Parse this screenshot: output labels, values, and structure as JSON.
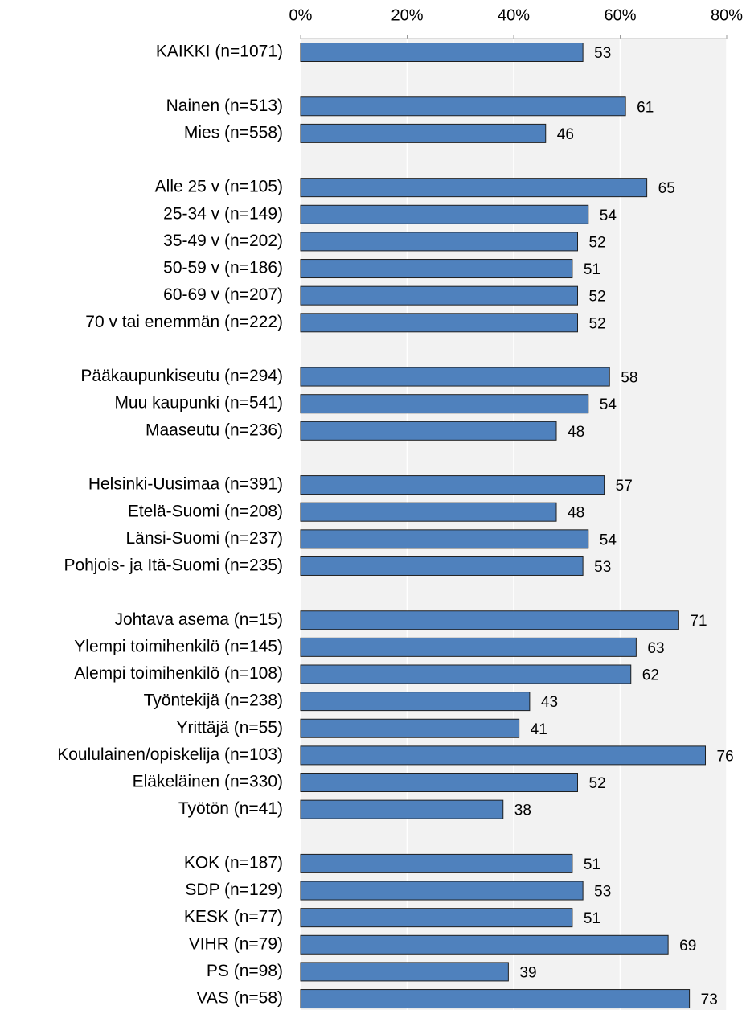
{
  "chart_data": {
    "type": "bar",
    "orientation": "horizontal",
    "color": "#4f81bd",
    "grid": true,
    "categories": [
      "KAIKKI (n=1071)",
      null,
      "Nainen (n=513)",
      "Mies (n=558)",
      null,
      "Alle 25 v (n=105)",
      "25-34 v (n=149)",
      "35-49 v (n=202)",
      "50-59 v (n=186)",
      "60-69 v (n=207)",
      "70 v tai enemmän (n=222)",
      null,
      "Pääkaupunkiseutu (n=294)",
      "Muu kaupunki (n=541)",
      "Maaseutu (n=236)",
      null,
      "Helsinki-Uusimaa (n=391)",
      "Etelä-Suomi (n=208)",
      "Länsi-Suomi (n=237)",
      "Pohjois- ja Itä-Suomi (n=235)",
      null,
      "Johtava asema (n=15)",
      "Ylempi toimihenkilö (n=145)",
      "Alempi toimihenkilö (n=108)",
      "Työntekijä (n=238)",
      "Yrittäjä (n=55)",
      "Koululainen/opiskelija (n=103)",
      "Eläkeläinen (n=330)",
      "Työtön (n=41)",
      null,
      "KOK (n=187)",
      "SDP (n=129)",
      "KESK (n=77)",
      "VIHR (n=79)",
      "PS (n=98)",
      "VAS (n=58)"
    ],
    "values": [
      53,
      null,
      61,
      46,
      null,
      65,
      54,
      52,
      51,
      52,
      52,
      null,
      58,
      54,
      48,
      null,
      57,
      48,
      54,
      53,
      null,
      71,
      63,
      62,
      43,
      41,
      76,
      52,
      38,
      null,
      51,
      53,
      51,
      69,
      39,
      73
    ],
    "xlim": [
      0,
      80
    ],
    "xticks": [
      {
        "value": 0,
        "label": "0%"
      },
      {
        "value": 20,
        "label": "20%"
      },
      {
        "value": 40,
        "label": "40%"
      },
      {
        "value": 60,
        "label": "60%"
      },
      {
        "value": 80,
        "label": "80%"
      }
    ]
  }
}
